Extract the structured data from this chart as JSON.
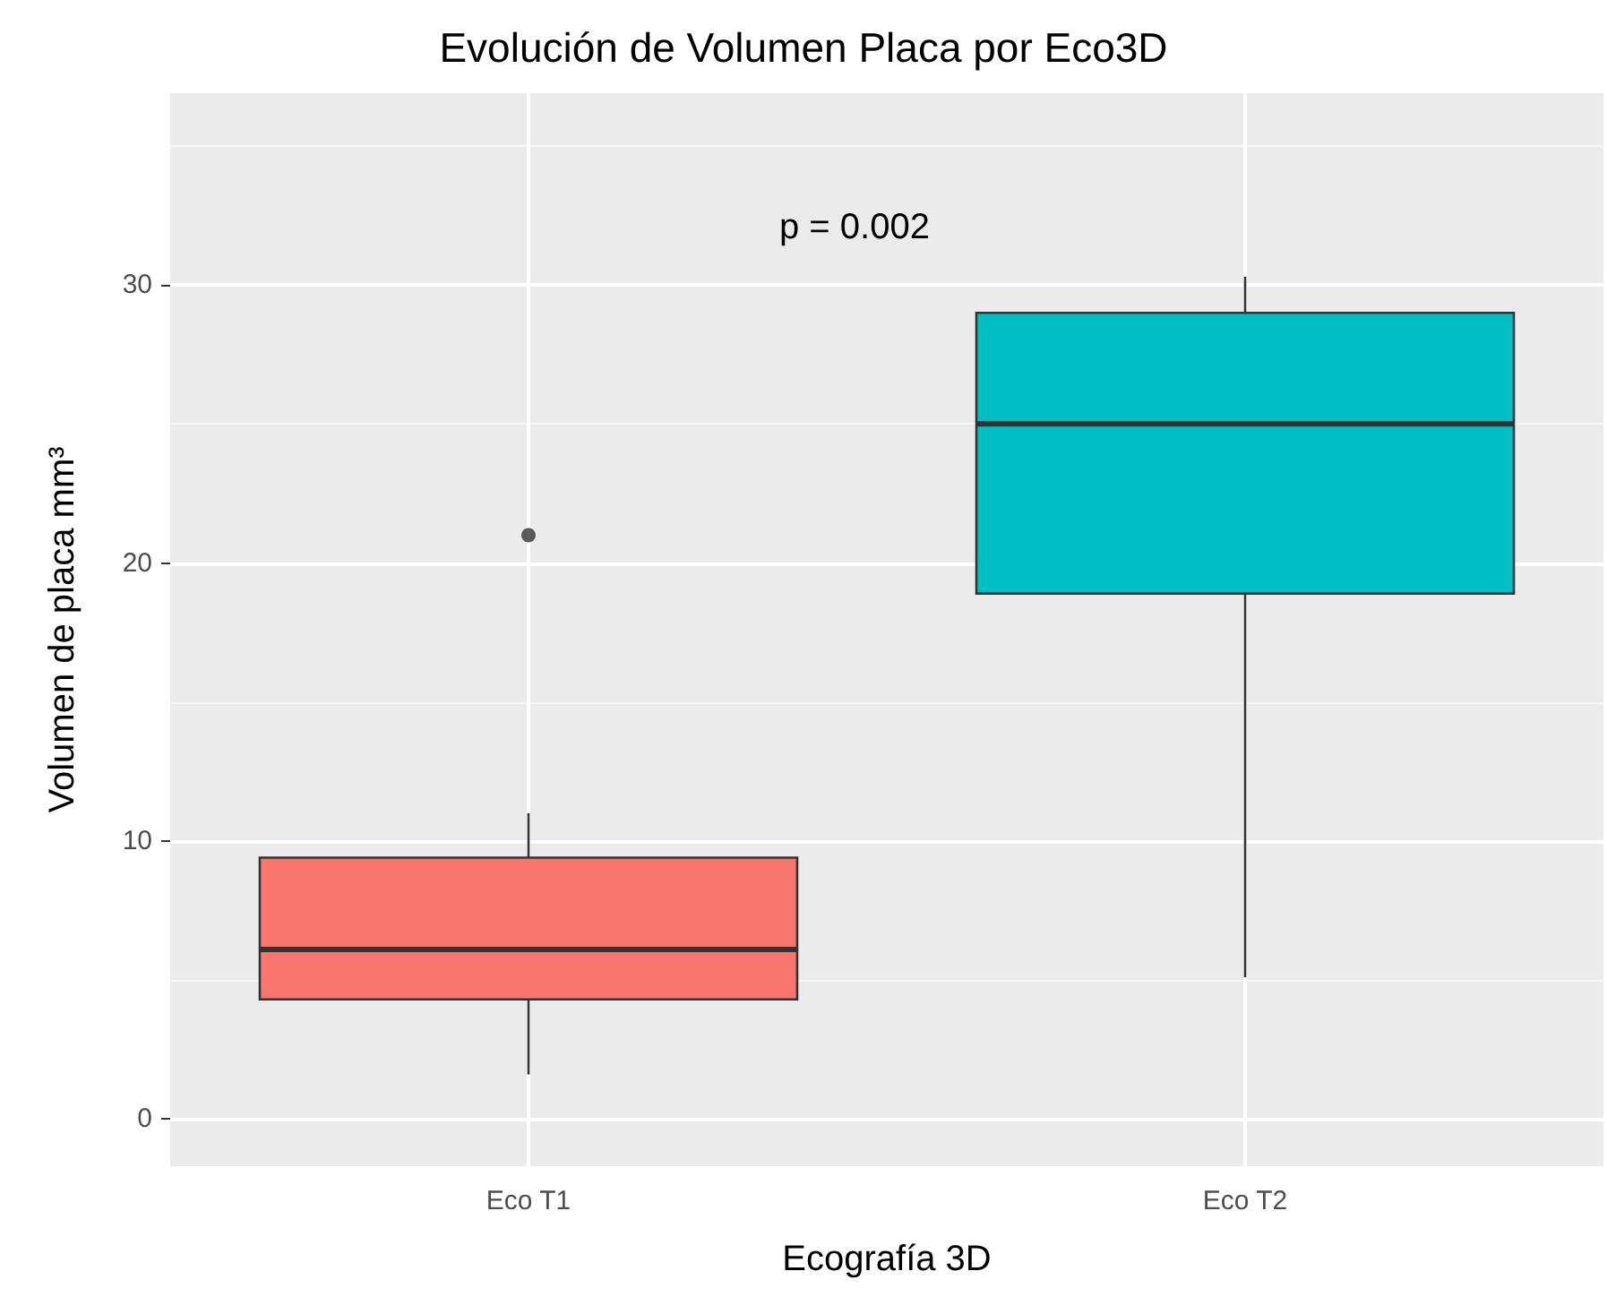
{
  "chart_data": {
    "type": "box",
    "title": "Evolución de Volumen Placa por Eco3D",
    "xlabel": "Ecografía 3D",
    "ylabel": "Volumen de placa mm³",
    "categories": [
      "Eco T1",
      "Eco T2"
    ],
    "series": [
      {
        "type": "box",
        "colors": [
          "#f8766d",
          "#00bfc4"
        ],
        "boxes": [
          {
            "low": 1.6,
            "q1": 4.3,
            "median": 6.1,
            "q3": 9.4,
            "high": 11.0,
            "outliers": [
              21.0
            ]
          },
          {
            "low": 5.1,
            "q1": 18.9,
            "median": 25.0,
            "q3": 29.0,
            "high": 30.3
          }
        ]
      }
    ],
    "annotations": [
      "p = 0.002"
    ],
    "ylim": [
      -1.7,
      36.9
    ],
    "yticks": [
      0,
      10,
      20,
      30
    ],
    "grid": true
  }
}
